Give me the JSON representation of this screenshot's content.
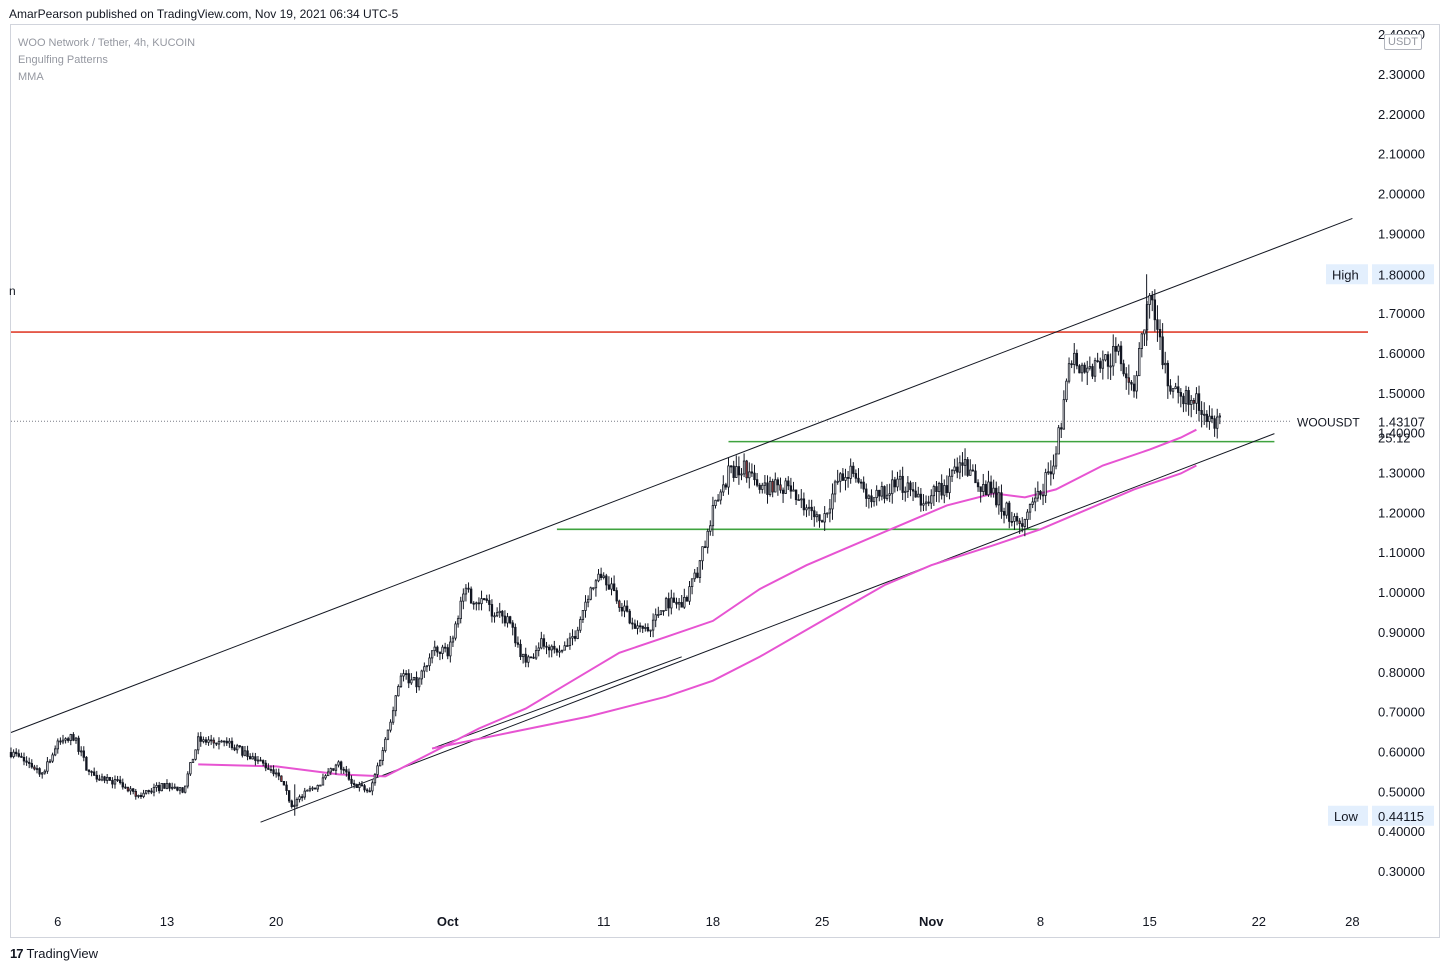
{
  "header": {
    "published_text": "AmarPearson published on TradingView.com, Nov 19, 2021 06:34 UTC-5"
  },
  "legend": {
    "symbol_line": "WOO Network / Tether, 4h, KUCOIN",
    "indicator_1": "Engulfing Patterns",
    "indicator_2": "MMA"
  },
  "partial_mark": "n",
  "currency": "USDT",
  "price_labels": {
    "high_label": "High",
    "high_value": "1.80000",
    "low_label": "Low",
    "low_value": "0.44115",
    "symbol_label": "WOOUSDT",
    "last_value": "1.43107",
    "countdown": "25:12"
  },
  "footer": {
    "logo_glyph": "17",
    "brand": "TradingView"
  },
  "colors": {
    "resistance_line": "#e0402f",
    "support_lines": "#3fa33f",
    "channel_lines": "#131722",
    "moving_average": "#e754d2",
    "candle_up": "#ffffff",
    "candle_down": "#131722",
    "candle_engulfing_down": "#b03a3a"
  },
  "chart_data": {
    "type": "candlestick",
    "symbol": "WOO Network / Tether, 4h, KUCOIN",
    "y_axis": {
      "ticks": [
        "2.40000",
        "2.30000",
        "2.20000",
        "2.10000",
        "2.00000",
        "1.90000",
        "1.80000",
        "1.70000",
        "1.60000",
        "1.50000",
        "1.40000",
        "1.30000",
        "1.20000",
        "1.10000",
        "1.00000",
        "0.90000",
        "0.80000",
        "0.70000",
        "0.60000",
        "0.50000",
        "0.40000",
        "0.30000"
      ],
      "range": [
        0.22,
        2.42
      ]
    },
    "x_axis": {
      "ticks": [
        "6",
        "13",
        "20",
        "Oct",
        "11",
        "18",
        "25",
        "Nov",
        "8",
        "15",
        "22",
        "28"
      ],
      "bold_ticks": [
        "Oct",
        "Nov"
      ],
      "range_days": [
        "2021-09-03",
        "2021-11-29"
      ]
    },
    "close_anchors": [
      {
        "date": "2021-09-03",
        "close": 0.6
      },
      {
        "date": "2021-09-05",
        "close": 0.55
      },
      {
        "date": "2021-09-06",
        "close": 0.62
      },
      {
        "date": "2021-09-07",
        "close": 0.64
      },
      {
        "date": "2021-09-08",
        "close": 0.55
      },
      {
        "date": "2021-09-10",
        "close": 0.52
      },
      {
        "date": "2021-09-11",
        "close": 0.49
      },
      {
        "date": "2021-09-13",
        "close": 0.52
      },
      {
        "date": "2021-09-14",
        "close": 0.5
      },
      {
        "date": "2021-09-15",
        "close": 0.63
      },
      {
        "date": "2021-09-17",
        "close": 0.62
      },
      {
        "date": "2021-09-18",
        "close": 0.6
      },
      {
        "date": "2021-09-20",
        "close": 0.55
      },
      {
        "date": "2021-09-21",
        "close": 0.47
      },
      {
        "date": "2021-09-22",
        "close": 0.5
      },
      {
        "date": "2021-09-23",
        "close": 0.53
      },
      {
        "date": "2021-09-24",
        "close": 0.57
      },
      {
        "date": "2021-09-25",
        "close": 0.52
      },
      {
        "date": "2021-09-26",
        "close": 0.5
      },
      {
        "date": "2021-09-27",
        "close": 0.63
      },
      {
        "date": "2021-09-28",
        "close": 0.8
      },
      {
        "date": "2021-09-29",
        "close": 0.77
      },
      {
        "date": "2021-09-30",
        "close": 0.85
      },
      {
        "date": "2021-10-01",
        "close": 0.85
      },
      {
        "date": "2021-10-02",
        "close": 1.0
      },
      {
        "date": "2021-10-03",
        "close": 0.98
      },
      {
        "date": "2021-10-04",
        "close": 0.95
      },
      {
        "date": "2021-10-05",
        "close": 0.92
      },
      {
        "date": "2021-10-06",
        "close": 0.82
      },
      {
        "date": "2021-10-07",
        "close": 0.88
      },
      {
        "date": "2021-10-08",
        "close": 0.84
      },
      {
        "date": "2021-10-09",
        "close": 0.88
      },
      {
        "date": "2021-10-10",
        "close": 1.0
      },
      {
        "date": "2021-10-11",
        "close": 1.05
      },
      {
        "date": "2021-10-12",
        "close": 0.98
      },
      {
        "date": "2021-10-13",
        "close": 0.9
      },
      {
        "date": "2021-10-14",
        "close": 0.92
      },
      {
        "date": "2021-10-15",
        "close": 0.98
      },
      {
        "date": "2021-10-16",
        "close": 0.97
      },
      {
        "date": "2021-10-17",
        "close": 1.05
      },
      {
        "date": "2021-10-18",
        "close": 1.2
      },
      {
        "date": "2021-10-19",
        "close": 1.3
      },
      {
        "date": "2021-10-20",
        "close": 1.32
      },
      {
        "date": "2021-10-21",
        "close": 1.25
      },
      {
        "date": "2021-10-22",
        "close": 1.28
      },
      {
        "date": "2021-10-23",
        "close": 1.25
      },
      {
        "date": "2021-10-24",
        "close": 1.2
      },
      {
        "date": "2021-10-25",
        "close": 1.18
      },
      {
        "date": "2021-10-26",
        "close": 1.28
      },
      {
        "date": "2021-10-27",
        "close": 1.3
      },
      {
        "date": "2021-10-28",
        "close": 1.23
      },
      {
        "date": "2021-10-29",
        "close": 1.25
      },
      {
        "date": "2021-10-30",
        "close": 1.28
      },
      {
        "date": "2021-10-31",
        "close": 1.23
      },
      {
        "date": "2021-11-01",
        "close": 1.25
      },
      {
        "date": "2021-11-02",
        "close": 1.27
      },
      {
        "date": "2021-11-03",
        "close": 1.33
      },
      {
        "date": "2021-11-04",
        "close": 1.27
      },
      {
        "date": "2021-11-05",
        "close": 1.25
      },
      {
        "date": "2021-11-06",
        "close": 1.2
      },
      {
        "date": "2021-11-07",
        "close": 1.18
      },
      {
        "date": "2021-11-08",
        "close": 1.25
      },
      {
        "date": "2021-11-09",
        "close": 1.35
      },
      {
        "date": "2021-11-10",
        "close": 1.6
      },
      {
        "date": "2021-11-11",
        "close": 1.55
      },
      {
        "date": "2021-11-12",
        "close": 1.58
      },
      {
        "date": "2021-11-13",
        "close": 1.6
      },
      {
        "date": "2021-11-14",
        "close": 1.52
      },
      {
        "date": "2021-11-15",
        "close": 1.75
      },
      {
        "date": "2021-11-16",
        "close": 1.55
      },
      {
        "date": "2021-11-17",
        "close": 1.5
      },
      {
        "date": "2021-11-18",
        "close": 1.48
      },
      {
        "date": "2021-11-19",
        "close": 1.43
      }
    ],
    "moving_average_1": [
      {
        "date": "2021-09-15",
        "value": 0.57
      },
      {
        "date": "2021-09-20",
        "value": 0.565
      },
      {
        "date": "2021-09-24",
        "value": 0.545
      },
      {
        "date": "2021-09-27",
        "value": 0.54
      },
      {
        "date": "2021-09-30",
        "value": 0.6
      },
      {
        "date": "2021-10-03",
        "value": 0.66
      },
      {
        "date": "2021-10-06",
        "value": 0.71
      },
      {
        "date": "2021-10-09",
        "value": 0.78
      },
      {
        "date": "2021-10-12",
        "value": 0.85
      },
      {
        "date": "2021-10-15",
        "value": 0.89
      },
      {
        "date": "2021-10-18",
        "value": 0.93
      },
      {
        "date": "2021-10-21",
        "value": 1.01
      },
      {
        "date": "2021-10-24",
        "value": 1.07
      },
      {
        "date": "2021-10-27",
        "value": 1.12
      },
      {
        "date": "2021-10-30",
        "value": 1.17
      },
      {
        "date": "2021-11-02",
        "value": 1.22
      },
      {
        "date": "2021-11-05",
        "value": 1.25
      },
      {
        "date": "2021-11-07",
        "value": 1.24
      },
      {
        "date": "2021-11-09",
        "value": 1.26
      },
      {
        "date": "2021-11-12",
        "value": 1.32
      },
      {
        "date": "2021-11-15",
        "value": 1.36
      },
      {
        "date": "2021-11-17",
        "value": 1.39
      },
      {
        "date": "2021-11-18",
        "value": 1.41
      }
    ],
    "moving_average_2": [
      {
        "date": "2021-09-30",
        "value": 0.61
      },
      {
        "date": "2021-10-05",
        "value": 0.65
      },
      {
        "date": "2021-10-10",
        "value": 0.69
      },
      {
        "date": "2021-10-15",
        "value": 0.74
      },
      {
        "date": "2021-10-18",
        "value": 0.78
      },
      {
        "date": "2021-10-21",
        "value": 0.84
      },
      {
        "date": "2021-10-25",
        "value": 0.93
      },
      {
        "date": "2021-10-29",
        "value": 1.02
      },
      {
        "date": "2021-11-01",
        "value": 1.07
      },
      {
        "date": "2021-11-05",
        "value": 1.12
      },
      {
        "date": "2021-11-08",
        "value": 1.16
      },
      {
        "date": "2021-11-11",
        "value": 1.21
      },
      {
        "date": "2021-11-14",
        "value": 1.26
      },
      {
        "date": "2021-11-17",
        "value": 1.3
      },
      {
        "date": "2021-11-18",
        "value": 1.32
      }
    ],
    "drawings": {
      "resistance": {
        "price": 1.655,
        "from": "2021-09-03",
        "to": "2021-11-29"
      },
      "support_upper": {
        "price": 1.38,
        "from": "2021-10-19",
        "to": "2021-11-23"
      },
      "support_lower": {
        "price": 1.16,
        "from": "2021-10-08",
        "to": "2021-11-08"
      },
      "channel_upper": {
        "from": {
          "date": "2021-09-03",
          "price": 0.65
        },
        "to": {
          "date": "2021-11-28",
          "price": 1.94
        }
      },
      "channel_lower": {
        "from": {
          "date": "2021-09-19",
          "price": 0.425
        },
        "to": {
          "date": "2021-11-23",
          "price": 1.4
        }
      },
      "channel_lower_short": {
        "from": {
          "date": "2021-09-30",
          "price": 0.61
        },
        "to": {
          "date": "2021-10-16",
          "price": 0.84
        }
      }
    },
    "high": 1.8,
    "low": 0.44115,
    "last": 1.43107,
    "last_price_line": 1.43107
  }
}
